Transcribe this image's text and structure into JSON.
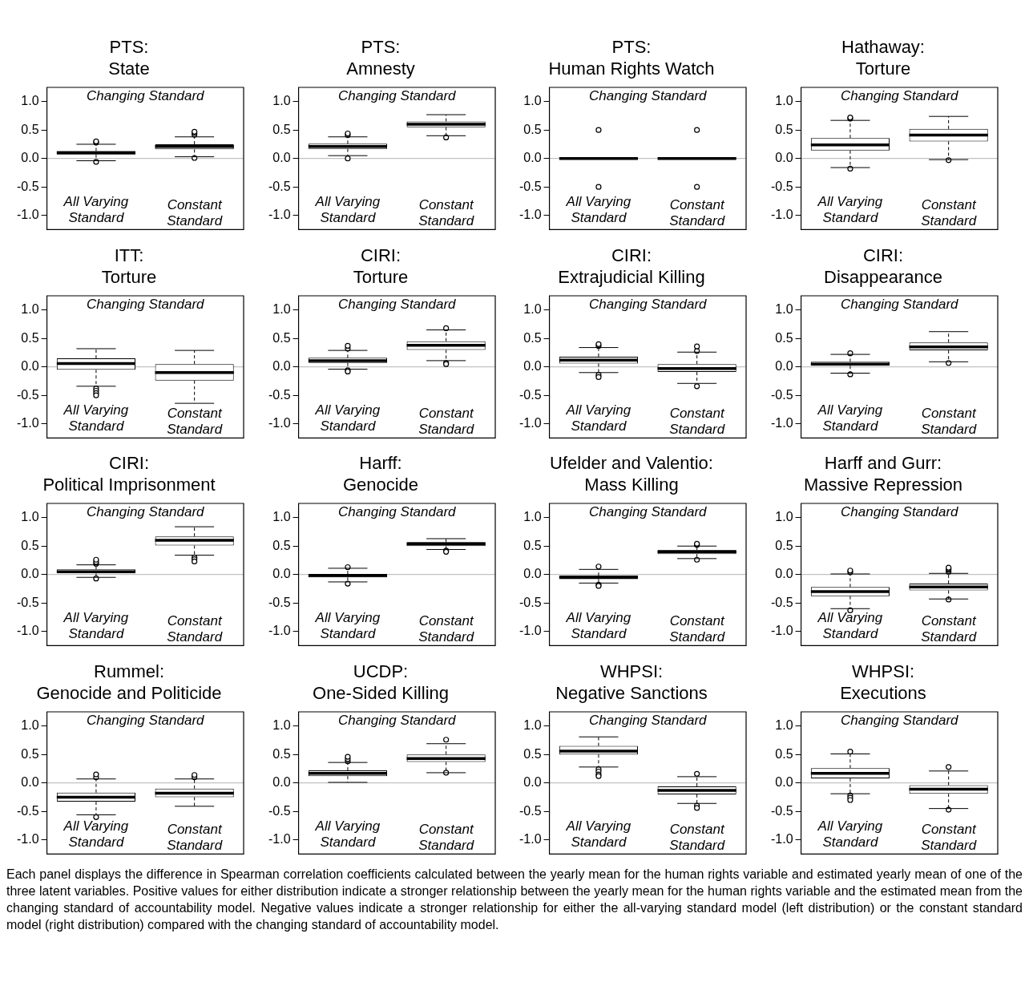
{
  "chart_data": [
    {
      "type": "box",
      "title": "PTS: State",
      "categories": [
        "All Varying Standard",
        "Constant Standard"
      ],
      "color": "#000000",
      "ylim": [
        -1.25,
        1.25
      ],
      "yticks": [
        {
          "value": -1,
          "label": "-1.0"
        },
        {
          "value": -0.5,
          "label": "-0.5"
        },
        {
          "value": 0,
          "label": "0.0"
        },
        {
          "value": 0.5,
          "label": "0.5"
        },
        {
          "value": 1,
          "label": "1.0"
        }
      ],
      "annotations": [
        "Changing Standard"
      ],
      "ref_lines": [
        {
          "axis": "y",
          "value": 0,
          "color": "#b3b3b3"
        }
      ],
      "boxes": [
        {
          "low": -0.04,
          "q1": 0.07,
          "median": 0.1,
          "q3": 0.13,
          "high": 0.25,
          "outliers": [
            0.28,
            0.3,
            -0.06
          ]
        },
        {
          "low": 0.03,
          "q1": 0.16,
          "median": 0.21,
          "q3": 0.25,
          "high": 0.38,
          "outliers": [
            0.42,
            0.45,
            0.47,
            0.01
          ]
        }
      ]
    },
    {
      "type": "box",
      "title": "PTS: Amnesty",
      "categories": [
        "All Varying Standard",
        "Constant Standard"
      ],
      "color": "#000000",
      "ylim": [
        -1.25,
        1.25
      ],
      "yticks": [
        {
          "value": -1,
          "label": "-1.0"
        },
        {
          "value": -0.5,
          "label": "-0.5"
        },
        {
          "value": 0,
          "label": "0.0"
        },
        {
          "value": 0.5,
          "label": "0.5"
        },
        {
          "value": 1,
          "label": "1.0"
        }
      ],
      "annotations": [
        "Changing Standard"
      ],
      "ref_lines": [
        {
          "axis": "y",
          "value": 0,
          "color": "#b3b3b3"
        }
      ],
      "boxes": [
        {
          "low": 0.05,
          "q1": 0.17,
          "median": 0.21,
          "q3": 0.26,
          "high": 0.38,
          "outliers": [
            0.41,
            0.44,
            0.0
          ]
        },
        {
          "low": 0.4,
          "q1": 0.55,
          "median": 0.6,
          "q3": 0.65,
          "high": 0.77,
          "outliers": [
            0.37
          ]
        }
      ]
    },
    {
      "type": "box",
      "title": "PTS: Human Rights Watch",
      "categories": [
        "All Varying Standard",
        "Constant Standard"
      ],
      "color": "#000000",
      "ylim": [
        -1.25,
        1.25
      ],
      "yticks": [
        {
          "value": -1,
          "label": "-1.0"
        },
        {
          "value": -0.5,
          "label": "-0.5"
        },
        {
          "value": 0,
          "label": "0.0"
        },
        {
          "value": 0.5,
          "label": "0.5"
        },
        {
          "value": 1,
          "label": "1.0"
        }
      ],
      "annotations": [
        "Changing Standard"
      ],
      "ref_lines": [
        {
          "axis": "y",
          "value": 0,
          "color": "#b3b3b3"
        }
      ],
      "boxes": [
        {
          "low": 0,
          "q1": 0,
          "median": 0,
          "q3": 0,
          "high": 0,
          "outliers": [
            0.5,
            -0.5
          ]
        },
        {
          "low": 0,
          "q1": 0,
          "median": 0,
          "q3": 0,
          "high": 0,
          "outliers": [
            0.5,
            -0.5
          ]
        }
      ]
    },
    {
      "type": "box",
      "title": "Hathaway: Torture",
      "categories": [
        "All Varying Standard",
        "Constant Standard"
      ],
      "color": "#000000",
      "ylim": [
        -1.25,
        1.25
      ],
      "yticks": [
        {
          "value": -1,
          "label": "-1.0"
        },
        {
          "value": -0.5,
          "label": "-0.5"
        },
        {
          "value": 0,
          "label": "0.0"
        },
        {
          "value": 0.5,
          "label": "0.5"
        },
        {
          "value": 1,
          "label": "1.0"
        }
      ],
      "annotations": [
        "Changing Standard"
      ],
      "ref_lines": [
        {
          "axis": "y",
          "value": 0,
          "color": "#b3b3b3"
        }
      ],
      "boxes": [
        {
          "low": -0.16,
          "q1": 0.14,
          "median": 0.24,
          "q3": 0.36,
          "high": 0.67,
          "outliers": [
            0.7,
            0.72,
            -0.18
          ]
        },
        {
          "low": -0.02,
          "q1": 0.3,
          "median": 0.41,
          "q3": 0.52,
          "high": 0.74,
          "outliers": [
            -0.03
          ]
        }
      ]
    },
    {
      "type": "box",
      "title": "ITT: Torture",
      "categories": [
        "All Varying Standard",
        "Constant Standard"
      ],
      "color": "#000000",
      "ylim": [
        -1.25,
        1.25
      ],
      "yticks": [
        {
          "value": -1,
          "label": "-1.0"
        },
        {
          "value": -0.5,
          "label": "-0.5"
        },
        {
          "value": 0,
          "label": "0.0"
        },
        {
          "value": 0.5,
          "label": "0.5"
        },
        {
          "value": 1,
          "label": "1.0"
        }
      ],
      "annotations": [
        "Changing Standard"
      ],
      "ref_lines": [
        {
          "axis": "y",
          "value": 0,
          "color": "#b3b3b3"
        }
      ],
      "boxes": [
        {
          "low": -0.34,
          "q1": -0.05,
          "median": 0.06,
          "q3": 0.15,
          "high": 0.32,
          "outliers": [
            -0.38,
            -0.42,
            -0.46,
            -0.5
          ]
        },
        {
          "low": -0.64,
          "q1": -0.24,
          "median": -0.1,
          "q3": 0.05,
          "high": 0.29
        }
      ]
    },
    {
      "type": "box",
      "title": "CIRI: Torture",
      "categories": [
        "All Varying Standard",
        "Constant Standard"
      ],
      "color": "#000000",
      "ylim": [
        -1.25,
        1.25
      ],
      "yticks": [
        {
          "value": -1,
          "label": "-1.0"
        },
        {
          "value": -0.5,
          "label": "-0.5"
        },
        {
          "value": 0,
          "label": "0.0"
        },
        {
          "value": 0.5,
          "label": "0.5"
        },
        {
          "value": 1,
          "label": "1.0"
        }
      ],
      "annotations": [
        "Changing Standard"
      ],
      "ref_lines": [
        {
          "axis": "y",
          "value": 0,
          "color": "#b3b3b3"
        }
      ],
      "boxes": [
        {
          "low": -0.04,
          "q1": 0.07,
          "median": 0.11,
          "q3": 0.16,
          "high": 0.29,
          "outliers": [
            0.32,
            0.37,
            -0.06,
            -0.08
          ]
        },
        {
          "low": 0.11,
          "q1": 0.3,
          "median": 0.38,
          "q3": 0.45,
          "high": 0.65,
          "outliers": [
            0.68,
            0.07,
            0.05
          ]
        }
      ]
    },
    {
      "type": "box",
      "title": "CIRI: Extrajudicial Killing",
      "categories": [
        "All Varying Standard",
        "Constant Standard"
      ],
      "color": "#000000",
      "ylim": [
        -1.25,
        1.25
      ],
      "yticks": [
        {
          "value": -1,
          "label": "-1.0"
        },
        {
          "value": -0.5,
          "label": "-0.5"
        },
        {
          "value": 0,
          "label": "0.0"
        },
        {
          "value": 0.5,
          "label": "0.5"
        },
        {
          "value": 1,
          "label": "1.0"
        }
      ],
      "annotations": [
        "Changing Standard"
      ],
      "ref_lines": [
        {
          "axis": "y",
          "value": 0,
          "color": "#b3b3b3"
        }
      ],
      "boxes": [
        {
          "low": -0.1,
          "q1": 0.06,
          "median": 0.12,
          "q3": 0.18,
          "high": 0.34,
          "outliers": [
            0.37,
            0.4,
            -0.14,
            -0.18
          ]
        },
        {
          "low": -0.29,
          "q1": -0.09,
          "median": -0.03,
          "q3": 0.05,
          "high": 0.26,
          "outliers": [
            0.28,
            0.36,
            -0.34
          ]
        }
      ]
    },
    {
      "type": "box",
      "title": "CIRI: Disappearance",
      "categories": [
        "All Varying Standard",
        "Constant Standard"
      ],
      "color": "#000000",
      "ylim": [
        -1.25,
        1.25
      ],
      "yticks": [
        {
          "value": -1,
          "label": "-1.0"
        },
        {
          "value": -0.5,
          "label": "-0.5"
        },
        {
          "value": 0,
          "label": "0.0"
        },
        {
          "value": 0.5,
          "label": "0.5"
        },
        {
          "value": 1,
          "label": "1.0"
        }
      ],
      "annotations": [
        "Changing Standard"
      ],
      "ref_lines": [
        {
          "axis": "y",
          "value": 0,
          "color": "#b3b3b3"
        }
      ],
      "boxes": [
        {
          "low": -0.11,
          "q1": 0.02,
          "median": 0.05,
          "q3": 0.09,
          "high": 0.22,
          "outliers": [
            0.24,
            -0.13
          ]
        },
        {
          "low": 0.09,
          "q1": 0.29,
          "median": 0.35,
          "q3": 0.43,
          "high": 0.62,
          "outliers": [
            0.07
          ]
        }
      ]
    },
    {
      "type": "box",
      "title": "CIRI: Political Imprisonment",
      "categories": [
        "All Varying Standard",
        "Constant Standard"
      ],
      "color": "#000000",
      "ylim": [
        -1.25,
        1.25
      ],
      "yticks": [
        {
          "value": -1,
          "label": "-1.0"
        },
        {
          "value": -0.5,
          "label": "-0.5"
        },
        {
          "value": 0,
          "label": "0.0"
        },
        {
          "value": 0.5,
          "label": "0.5"
        },
        {
          "value": 1,
          "label": "1.0"
        }
      ],
      "annotations": [
        "Changing Standard"
      ],
      "ref_lines": [
        {
          "axis": "y",
          "value": 0,
          "color": "#b3b3b3"
        }
      ],
      "boxes": [
        {
          "low": -0.05,
          "q1": 0.02,
          "median": 0.05,
          "q3": 0.09,
          "high": 0.17,
          "outliers": [
            0.19,
            0.22,
            0.26,
            -0.07
          ]
        },
        {
          "low": 0.34,
          "q1": 0.51,
          "median": 0.6,
          "q3": 0.67,
          "high": 0.84,
          "outliers": [
            0.3,
            0.27,
            0.23
          ]
        }
      ]
    },
    {
      "type": "box",
      "title": "Harff: Genocide",
      "categories": [
        "All Varying Standard",
        "Constant Standard"
      ],
      "color": "#000000",
      "ylim": [
        -1.25,
        1.25
      ],
      "yticks": [
        {
          "value": -1,
          "label": "-1.0"
        },
        {
          "value": -0.5,
          "label": "-0.5"
        },
        {
          "value": 0,
          "label": "0.0"
        },
        {
          "value": 0.5,
          "label": "0.5"
        },
        {
          "value": 1,
          "label": "1.0"
        }
      ],
      "annotations": [
        "Changing Standard"
      ],
      "ref_lines": [
        {
          "axis": "y",
          "value": 0,
          "color": "#b3b3b3"
        }
      ],
      "boxes": [
        {
          "low": -0.13,
          "q1": -0.05,
          "median": -0.02,
          "q3": 0.01,
          "high": 0.11,
          "outliers": [
            0.13,
            -0.16
          ]
        },
        {
          "low": 0.44,
          "q1": 0.5,
          "median": 0.54,
          "q3": 0.57,
          "high": 0.63,
          "outliers": [
            0.42,
            0.4
          ]
        }
      ]
    },
    {
      "type": "box",
      "title": "Ufelder and Valentio: Mass Killing",
      "categories": [
        "All Varying Standard",
        "Constant Standard"
      ],
      "color": "#000000",
      "ylim": [
        -1.25,
        1.25
      ],
      "yticks": [
        {
          "value": -1,
          "label": "-1.0"
        },
        {
          "value": -0.5,
          "label": "-0.5"
        },
        {
          "value": 0,
          "label": "0.0"
        },
        {
          "value": 0.5,
          "label": "0.5"
        },
        {
          "value": 1,
          "label": "1.0"
        }
      ],
      "annotations": [
        "Changing Standard"
      ],
      "ref_lines": [
        {
          "axis": "y",
          "value": 0,
          "color": "#b3b3b3"
        }
      ],
      "boxes": [
        {
          "low": -0.15,
          "q1": -0.08,
          "median": -0.05,
          "q3": -0.02,
          "high": 0.09,
          "outliers": [
            0.14,
            -0.18,
            -0.2
          ]
        },
        {
          "low": 0.28,
          "q1": 0.36,
          "median": 0.4,
          "q3": 0.43,
          "high": 0.5,
          "outliers": [
            0.52,
            0.54,
            0.26
          ]
        }
      ]
    },
    {
      "type": "box",
      "title": "Harff and Gurr: Massive Repression",
      "categories": [
        "All Varying Standard",
        "Constant Standard"
      ],
      "color": "#000000",
      "ylim": [
        -1.25,
        1.25
      ],
      "yticks": [
        {
          "value": -1,
          "label": "-1.0"
        },
        {
          "value": -0.5,
          "label": "-0.5"
        },
        {
          "value": 0,
          "label": "0.0"
        },
        {
          "value": 0.5,
          "label": "0.5"
        },
        {
          "value": 1,
          "label": "1.0"
        }
      ],
      "annotations": [
        "Changing Standard"
      ],
      "ref_lines": [
        {
          "axis": "y",
          "value": 0,
          "color": "#b3b3b3"
        }
      ],
      "boxes": [
        {
          "low": -0.6,
          "q1": -0.38,
          "median": -0.3,
          "q3": -0.22,
          "high": 0.01,
          "outliers": [
            0.04,
            0.07,
            -0.63
          ]
        },
        {
          "low": -0.43,
          "q1": -0.28,
          "median": -0.22,
          "q3": -0.16,
          "high": 0.02,
          "outliers": [
            0.05,
            0.08,
            0.1,
            0.12,
            -0.44
          ]
        }
      ]
    },
    {
      "type": "box",
      "title": "Rummel: Genocide and Politicide",
      "categories": [
        "All Varying Standard",
        "Constant Standard"
      ],
      "color": "#000000",
      "ylim": [
        -1.25,
        1.25
      ],
      "yticks": [
        {
          "value": -1,
          "label": "-1.0"
        },
        {
          "value": -0.5,
          "label": "-0.5"
        },
        {
          "value": 0,
          "label": "0.0"
        },
        {
          "value": 0.5,
          "label": "0.5"
        },
        {
          "value": 1,
          "label": "1.0"
        }
      ],
      "annotations": [
        "Changing Standard"
      ],
      "ref_lines": [
        {
          "axis": "y",
          "value": 0,
          "color": "#b3b3b3"
        }
      ],
      "boxes": [
        {
          "low": -0.56,
          "q1": -0.33,
          "median": -0.25,
          "q3": -0.17,
          "high": 0.07,
          "outliers": [
            0.1,
            0.15,
            -0.6
          ]
        },
        {
          "low": -0.41,
          "q1": -0.25,
          "median": -0.18,
          "q3": -0.1,
          "high": 0.07,
          "outliers": [
            0.1,
            0.14
          ]
        }
      ]
    },
    {
      "type": "box",
      "title": "UCDP: One-Sided Killing",
      "categories": [
        "All Varying Standard",
        "Constant Standard"
      ],
      "color": "#000000",
      "ylim": [
        -1.25,
        1.25
      ],
      "yticks": [
        {
          "value": -1,
          "label": "-1.0"
        },
        {
          "value": -0.5,
          "label": "-0.5"
        },
        {
          "value": 0,
          "label": "0.0"
        },
        {
          "value": 0.5,
          "label": "0.5"
        },
        {
          "value": 1,
          "label": "1.0"
        }
      ],
      "annotations": [
        "Changing Standard"
      ],
      "ref_lines": [
        {
          "axis": "y",
          "value": 0,
          "color": "#b3b3b3"
        }
      ],
      "boxes": [
        {
          "low": 0.01,
          "q1": 0.12,
          "median": 0.17,
          "q3": 0.22,
          "high": 0.36,
          "outliers": [
            0.38,
            0.42,
            0.46
          ]
        },
        {
          "low": 0.18,
          "q1": 0.37,
          "median": 0.43,
          "q3": 0.5,
          "high": 0.69,
          "outliers": [
            0.76,
            0.18
          ]
        }
      ]
    },
    {
      "type": "box",
      "title": "WHPSI: Negative Sanctions",
      "categories": [
        "All Varying Standard",
        "Constant Standard"
      ],
      "color": "#000000",
      "ylim": [
        -1.25,
        1.25
      ],
      "yticks": [
        {
          "value": -1,
          "label": "-1.0"
        },
        {
          "value": -0.5,
          "label": "-0.5"
        },
        {
          "value": 0,
          "label": "0.0"
        },
        {
          "value": 0.5,
          "label": "0.5"
        },
        {
          "value": 1,
          "label": "1.0"
        }
      ],
      "annotations": [
        "Changing Standard"
      ],
      "ref_lines": [
        {
          "axis": "y",
          "value": 0,
          "color": "#b3b3b3"
        }
      ],
      "boxes": [
        {
          "low": 0.28,
          "q1": 0.5,
          "median": 0.56,
          "q3": 0.65,
          "high": 0.81,
          "outliers": [
            0.24,
            0.2,
            0.15,
            0.12
          ]
        },
        {
          "low": -0.36,
          "q1": -0.2,
          "median": -0.13,
          "q3": -0.06,
          "high": 0.11,
          "outliers": [
            0.16,
            -0.4,
            -0.44
          ]
        }
      ]
    },
    {
      "type": "box",
      "title": "WHPSI: Executions",
      "categories": [
        "All Varying Standard",
        "Constant Standard"
      ],
      "color": "#000000",
      "ylim": [
        -1.25,
        1.25
      ],
      "yticks": [
        {
          "value": -1,
          "label": "-1.0"
        },
        {
          "value": -0.5,
          "label": "-0.5"
        },
        {
          "value": 0,
          "label": "0.0"
        },
        {
          "value": 0.5,
          "label": "0.5"
        },
        {
          "value": 1,
          "label": "1.0"
        }
      ],
      "annotations": [
        "Changing Standard"
      ],
      "ref_lines": [
        {
          "axis": "y",
          "value": 0,
          "color": "#b3b3b3"
        }
      ],
      "boxes": [
        {
          "low": -0.19,
          "q1": 0.08,
          "median": 0.17,
          "q3": 0.26,
          "high": 0.51,
          "outliers": [
            0.55,
            -0.22,
            -0.26,
            -0.3
          ]
        },
        {
          "low": -0.45,
          "q1": -0.19,
          "median": -0.11,
          "q3": -0.04,
          "high": 0.21,
          "outliers": [
            0.28,
            -0.47
          ]
        }
      ]
    },
    {
      "type": "other",
      "annotations": [
        "Each panel displays the difference in Spearman correlation coefficients calculated between the yearly mean for the human rights variable and estimated yearly mean of one of the three latent variables. Positive values for either distribution indicate a stronger relationship between the yearly mean for the human rights variable and the estimated mean from the changing standard of accountability model. Negative values indicate a stronger relationship for either the all-varying standard model (left distribution) or the constant standard model (right distribution) compared with the changing standard of accountability model."
      ]
    }
  ]
}
